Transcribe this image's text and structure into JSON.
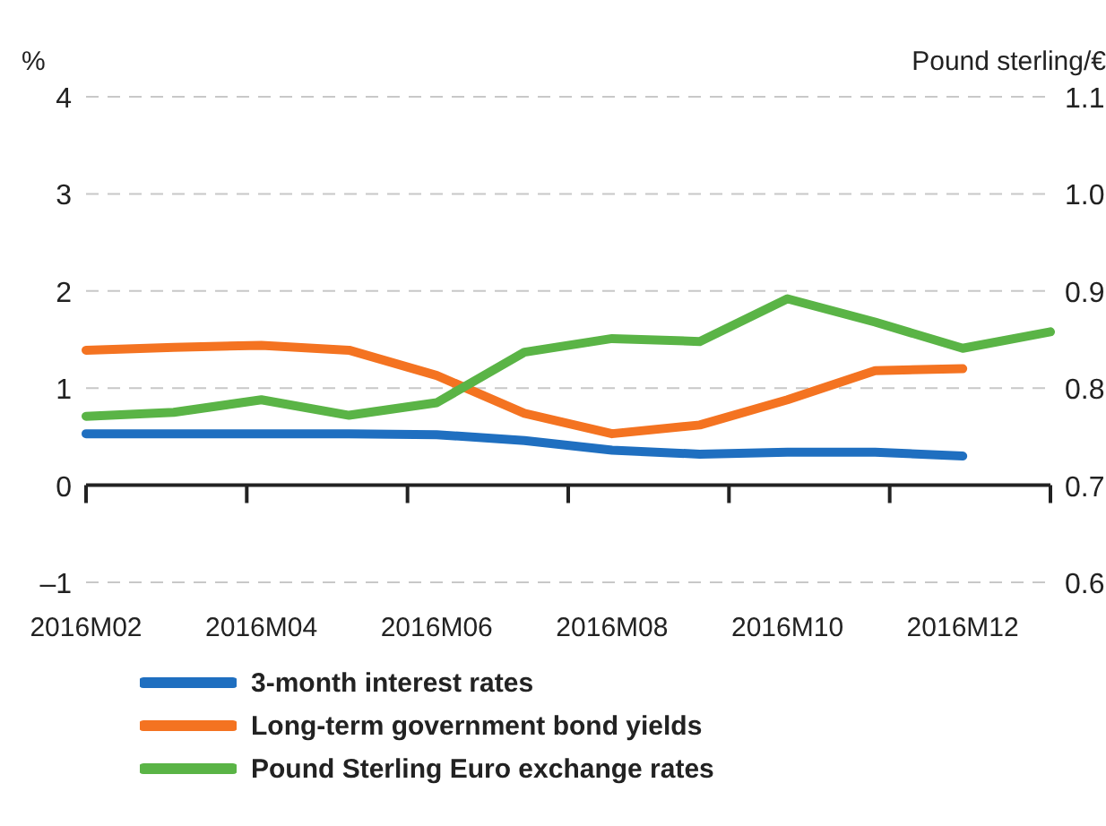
{
  "chart_data": {
    "type": "line",
    "ylabel": "%",
    "y2label": "Pound sterling/€",
    "categories": [
      "2016M02",
      null,
      "2016M04",
      null,
      "2016M06",
      null,
      "2016M08",
      null,
      "2016M10",
      null,
      "2016M12",
      null
    ],
    "series": [
      {
        "name": "3-month interest rates",
        "color": "#1f6fc0",
        "values": [
          0.53,
          0.53,
          0.53,
          0.53,
          0.52,
          0.46,
          0.36,
          0.32,
          0.34,
          0.34,
          0.3,
          null
        ]
      },
      {
        "name": "Long-term government bond yields",
        "color": "#f47321",
        "values": [
          1.39,
          1.42,
          1.44,
          1.39,
          1.13,
          0.74,
          0.53,
          0.62,
          0.88,
          1.18,
          1.2,
          null
        ]
      },
      {
        "name": "Pound Sterling Euro exchange rates",
        "color": "#5ab446",
        "axis": "y2",
        "values": [
          0.771,
          0.775,
          0.788,
          0.772,
          0.785,
          0.837,
          0.851,
          0.848,
          0.892,
          0.868,
          0.841,
          0.858
        ]
      }
    ],
    "ylim": [
      -1,
      4
    ],
    "yticks": [
      {
        "value": -1,
        "label": "–1"
      },
      0,
      1,
      2,
      3,
      4
    ],
    "y2lim": [
      0.6,
      1.1
    ],
    "y2ticks": [
      0.6,
      0.7,
      0.8,
      0.9,
      {
        "value": 1,
        "label": "1.0"
      },
      1.1
    ],
    "grid": "y",
    "legend": "bottom",
    "marker": "none",
    "line_style": "solid"
  }
}
